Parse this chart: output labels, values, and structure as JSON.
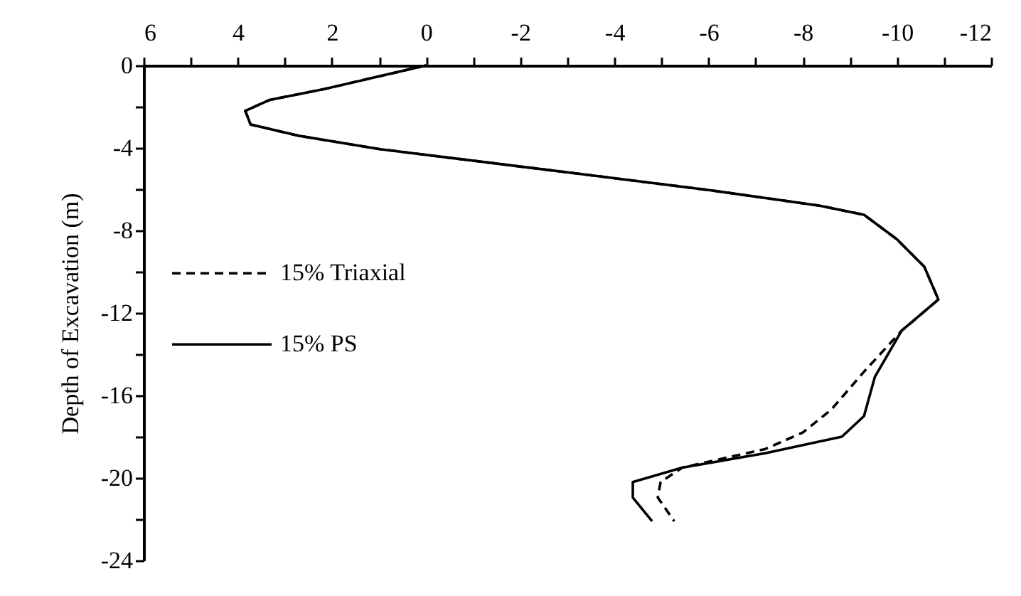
{
  "chart_data": {
    "type": "line",
    "ylabel": "Depth of Excavation (m)",
    "xlim": [
      6,
      -12
    ],
    "ylim": [
      -24,
      0
    ],
    "xticks": [
      6,
      {
        "value": 5,
        "label": null
      },
      4,
      {
        "value": 3,
        "label": null
      },
      2,
      {
        "value": 1,
        "label": null
      },
      0,
      {
        "value": -1,
        "label": null
      },
      -2,
      {
        "value": -3,
        "label": null
      },
      -4,
      {
        "value": -5,
        "label": null
      },
      -6,
      {
        "value": -7,
        "label": null
      },
      -8,
      {
        "value": -9,
        "label": null
      },
      -10,
      {
        "value": -11,
        "label": null
      },
      -12
    ],
    "yticks": [
      0,
      {
        "value": -2,
        "label": null
      },
      -4,
      {
        "value": -6,
        "label": null
      },
      -8,
      {
        "value": -10,
        "label": null
      },
      -12,
      {
        "value": -14,
        "label": null
      },
      -16,
      {
        "value": -18,
        "label": null
      },
      -20,
      {
        "value": -22,
        "label": null
      },
      -24
    ],
    "grid": false,
    "legend": "left",
    "series": [
      {
        "name": "15% Triaxial",
        "color": "#000000",
        "line_style": "dashed",
        "x": [
          0,
          2.15,
          3.32,
          3.84,
          3.73,
          2.73,
          0.98,
          -1.36,
          -3.69,
          -6.03,
          -8.36,
          -9.3,
          -10.0,
          -10.58,
          -10.88,
          -10.1,
          -9.3,
          -8.6,
          -8.0,
          -7.2,
          -5.44,
          -4.98,
          -4.92,
          -5.27
        ],
        "values": [
          0,
          -1.14,
          -1.67,
          -2.2,
          -2.86,
          -3.4,
          -4.06,
          -4.72,
          -5.38,
          -6.05,
          -6.8,
          -7.24,
          -8.43,
          -9.76,
          -11.35,
          -12.86,
          -14.85,
          -16.7,
          -17.8,
          -18.6,
          -19.5,
          -20.2,
          -20.95,
          -22.1
        ]
      },
      {
        "name": "15% PS",
        "color": "#000000",
        "line_style": "solid",
        "x": [
          0,
          2.15,
          3.32,
          3.84,
          3.73,
          2.73,
          0.98,
          -1.36,
          -3.69,
          -6.03,
          -8.36,
          -9.3,
          -10.0,
          -10.58,
          -10.88,
          -10.1,
          -9.53,
          -9.3,
          -8.83,
          -7.2,
          -5.44,
          -4.39,
          -4.39,
          -4.8
        ],
        "values": [
          0,
          -1.14,
          -1.67,
          -2.2,
          -2.86,
          -3.4,
          -4.06,
          -4.72,
          -5.38,
          -6.05,
          -6.8,
          -7.24,
          -8.43,
          -9.76,
          -11.35,
          -12.86,
          -15.1,
          -17.0,
          -18.0,
          -18.8,
          -19.5,
          -20.2,
          -20.95,
          -22.1
        ]
      }
    ]
  }
}
